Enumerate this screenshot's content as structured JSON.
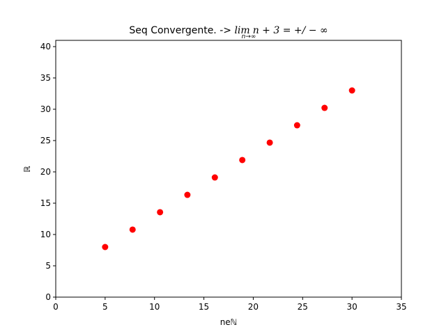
{
  "chart_data": {
    "type": "scatter",
    "title": {
      "prefix": "Seq Convergente. -> ",
      "lim": "lim",
      "lim_sub": "n→∞",
      "expr": "n + 3 = +/ − ∞"
    },
    "xlabel": "neℕ",
    "ylabel": "ℝ",
    "xlim": [
      0,
      35
    ],
    "ylim": [
      0,
      41
    ],
    "xticks": [
      0,
      5,
      10,
      15,
      20,
      25,
      30,
      35
    ],
    "yticks": [
      0,
      5,
      10,
      15,
      20,
      25,
      30,
      35,
      40
    ],
    "grid": false,
    "marker_color": "#ff0000",
    "series": [
      {
        "x": [
          5.0,
          7.78,
          10.56,
          13.33,
          16.11,
          18.89,
          21.67,
          24.44,
          27.22,
          30.0
        ],
        "y": [
          8.0,
          10.78,
          13.56,
          16.33,
          19.11,
          21.89,
          24.67,
          27.44,
          30.22,
          33.0
        ]
      }
    ]
  }
}
